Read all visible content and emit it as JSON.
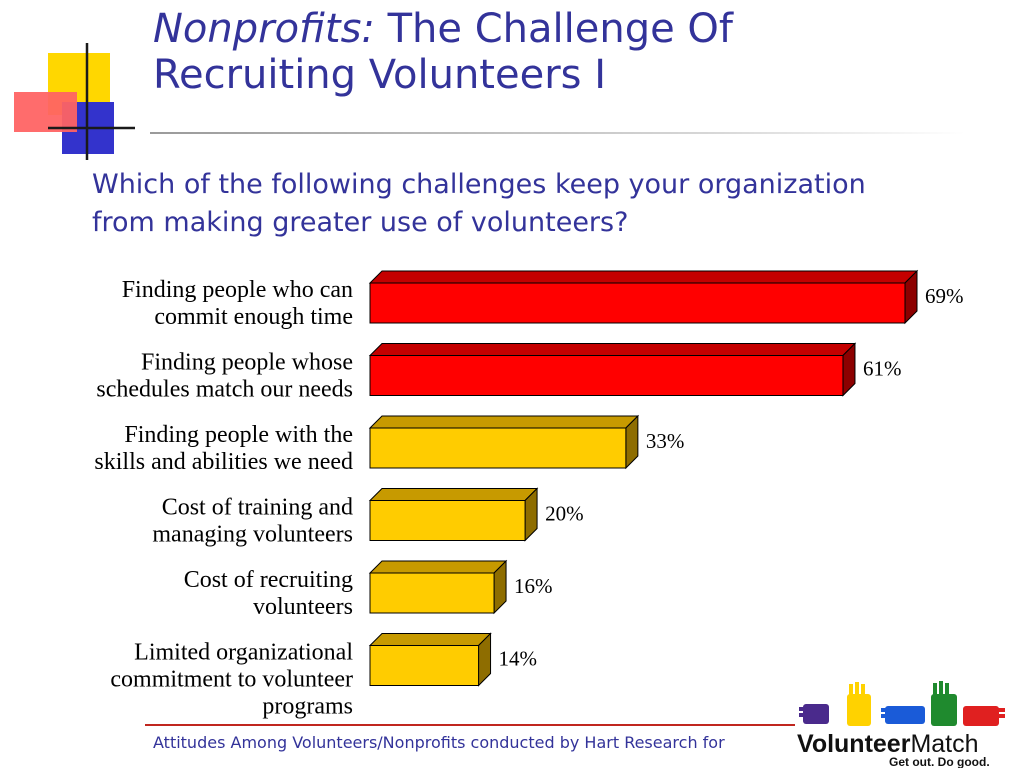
{
  "slide": {
    "title_italic": "Nonprofits:",
    "title_rest_line1": "The Challenge Of",
    "title_line2": "Recruiting Volunteers I",
    "question_line1": "Which of the following challenges keep your organization",
    "question_line2": "from making greater use of volunteers?",
    "footer": "Attitudes Among Volunteers/Nonprofits conducted by Hart Research for"
  },
  "logo": {
    "wordmark_bold": "Volunteer",
    "wordmark_light": "Match",
    "tagline": "Get out. Do good."
  },
  "colors": {
    "title": "#33339a",
    "bar_red": "#ff0000",
    "bar_yellow": "#ffcc00"
  },
  "chart_data": {
    "type": "bar",
    "orientation": "horizontal",
    "categories": [
      [
        "Finding people who can",
        "commit enough time"
      ],
      [
        "Finding people whose",
        "schedules match our needs"
      ],
      [
        "Finding people with the",
        "skills and abilities we need"
      ],
      [
        "Cost of training and",
        "managing volunteers"
      ],
      [
        "Cost of recruiting",
        "volunteers"
      ],
      [
        "Limited organizational",
        "commitment to volunteer",
        "programs"
      ]
    ],
    "values": [
      69,
      61,
      33,
      20,
      16,
      14
    ],
    "labels": [
      "69%",
      "61%",
      "33%",
      "20%",
      "16%",
      "14%"
    ],
    "bar_colors": [
      "red",
      "red",
      "yellow",
      "yellow",
      "yellow",
      "yellow"
    ],
    "xlim": [
      0,
      69
    ],
    "grid": false,
    "legend": "none"
  }
}
